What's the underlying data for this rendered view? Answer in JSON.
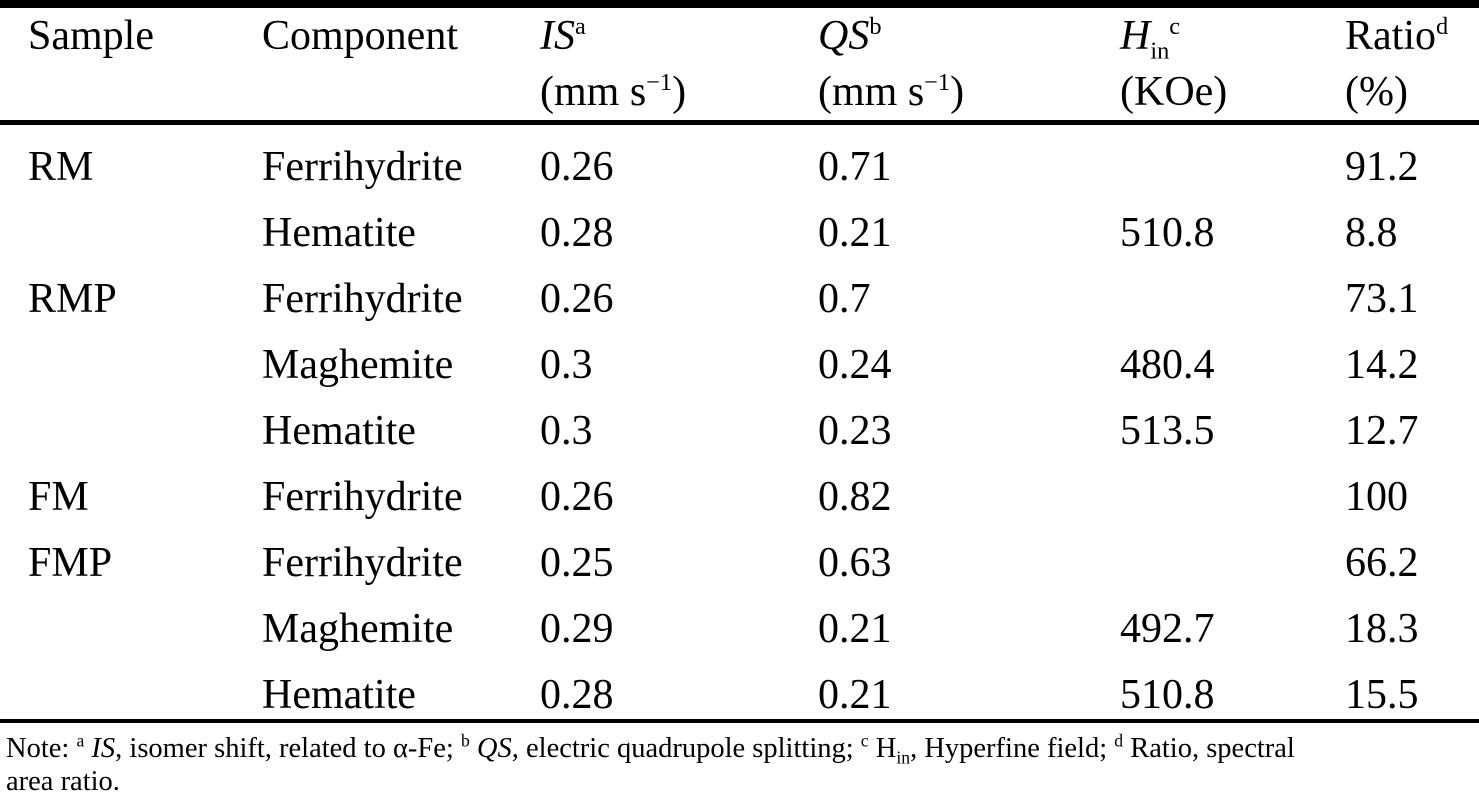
{
  "table": {
    "headers": {
      "sample": {
        "label": "Sample"
      },
      "component": {
        "label": "Component"
      },
      "is": {
        "symbol": "IS",
        "footnote": "a",
        "unit_open": "(mm s",
        "unit_exp": "−1",
        "unit_close": ")"
      },
      "qs": {
        "symbol": "QS",
        "footnote": "b",
        "unit_open": "(mm s",
        "unit_exp": "−1",
        "unit_close": ")"
      },
      "hin": {
        "symbol": "H",
        "subscript": "in",
        "footnote": "c",
        "unit": "(KOe)"
      },
      "ratio": {
        "label": "Ratio",
        "footnote": "d",
        "unit": "(%)"
      }
    },
    "rows": [
      {
        "sample": "RM",
        "component": "Ferrihydrite",
        "is": "0.26",
        "qs": "0.71",
        "hin": "",
        "ratio": "91.2"
      },
      {
        "sample": "",
        "component": "Hematite",
        "is": "0.28",
        "qs": "0.21",
        "hin": "510.8",
        "ratio": "8.8"
      },
      {
        "sample": "RMP",
        "component": "Ferrihydrite",
        "is": "0.26",
        "qs": "0.7",
        "hin": "",
        "ratio": "73.1"
      },
      {
        "sample": "",
        "component": "Maghemite",
        "is": "0.3",
        "qs": "0.24",
        "hin": "480.4",
        "ratio": "14.2"
      },
      {
        "sample": "",
        "component": "Hematite",
        "is": "0.3",
        "qs": "0.23",
        "hin": "513.5",
        "ratio": "12.7"
      },
      {
        "sample": "FM",
        "component": "Ferrihydrite",
        "is": "0.26",
        "qs": "0.82",
        "hin": "",
        "ratio": "100"
      },
      {
        "sample": "FMP",
        "component": "Ferrihydrite",
        "is": "0.25",
        "qs": "0.63",
        "hin": "",
        "ratio": "66.2"
      },
      {
        "sample": "",
        "component": "Maghemite",
        "is": "0.29",
        "qs": "0.21",
        "hin": "492.7",
        "ratio": "18.3"
      },
      {
        "sample": "",
        "component": "Hematite",
        "is": "0.28",
        "qs": "0.21",
        "hin": "510.8",
        "ratio": "15.5"
      }
    ]
  },
  "note": {
    "segments": [
      {
        "t": "Note: "
      },
      {
        "t": "a",
        "style": "sup"
      },
      {
        "t": " "
      },
      {
        "t": "IS",
        "style": "i"
      },
      {
        "t": ", isomer shift, related to α-Fe; "
      },
      {
        "t": "b",
        "style": "sup"
      },
      {
        "t": " "
      },
      {
        "t": "QS",
        "style": "i"
      },
      {
        "t": ", electric quadrupole splitting; "
      },
      {
        "t": "c",
        "style": "sup"
      },
      {
        "t": " H"
      },
      {
        "t": "in",
        "style": "sub"
      },
      {
        "t": ", Hyperfine field; "
      },
      {
        "t": "d",
        "style": "sup"
      },
      {
        "t": " Ratio, spectral"
      },
      {
        "style": "br"
      },
      {
        "t": "area ratio."
      }
    ]
  },
  "colors": {
    "background": "#ffffff",
    "text": "#000000",
    "rule": "#000000"
  }
}
